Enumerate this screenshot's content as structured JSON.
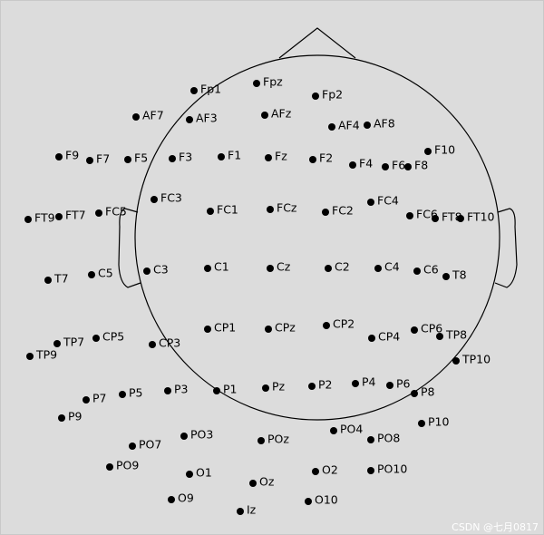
{
  "electrodes": [
    "Fp1",
    "Fpz",
    "Fp2",
    "AF7",
    "AF3",
    "AFz",
    "AF4",
    "AF8",
    "F9",
    "F7",
    "F5",
    "F3",
    "F1",
    "Fz",
    "F2",
    "F4",
    "F6",
    "F8",
    "F10",
    "FT9",
    "FT7",
    "FC5",
    "FC3",
    "FC1",
    "FCz",
    "FC2",
    "FC4",
    "FC6",
    "FT8",
    "FT10",
    "T7",
    "C5",
    "C3",
    "C1",
    "Cz",
    "C2",
    "C4",
    "C6",
    "T8",
    "TP7",
    "CP5",
    "CP3",
    "CP1",
    "CPz",
    "CP2",
    "CP4",
    "CP6",
    "TP8",
    "TP9",
    "TP10",
    "P9",
    "P7",
    "P5",
    "P3",
    "P1",
    "Pz",
    "P2",
    "P4",
    "P6",
    "P8",
    "P10",
    "PO9",
    "PO7",
    "PO3",
    "POz",
    "PO4",
    "PO8",
    "PO10",
    "O9",
    "O1",
    "Oz",
    "O2",
    "O10",
    "Iz"
  ],
  "watermark": "CSDN @七月0817"
}
